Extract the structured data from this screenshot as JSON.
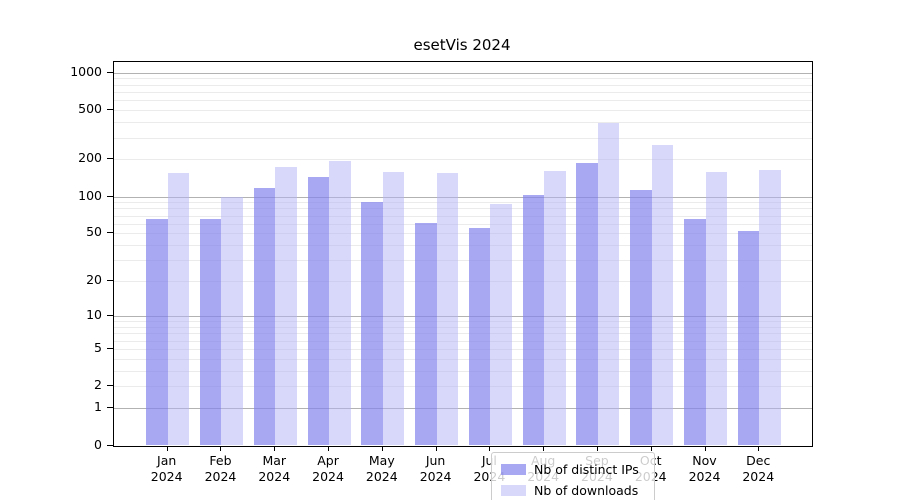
{
  "chart_data": {
    "type": "bar",
    "title": "esetVis 2024",
    "categories": [
      "Jan",
      "Feb",
      "Mar",
      "Apr",
      "May",
      "Jun",
      "Jul",
      "Aug",
      "Sep",
      "Oct",
      "Nov",
      "Dec"
    ],
    "category_year": "2024",
    "series": [
      {
        "name": "Nb of distinct IPs",
        "color": "rgba(131,131,236,0.7)",
        "values": [
          65,
          66,
          117,
          145,
          91,
          61,
          55,
          102,
          188,
          112,
          65,
          52
        ]
      },
      {
        "name": "Nb of downloads",
        "color": "rgba(177,177,245,0.5)",
        "values": [
          154,
          100,
          175,
          195,
          158,
          156,
          87,
          161,
          395,
          260,
          157,
          165
        ]
      }
    ],
    "yscale": "symlog",
    "ylim": [
      0,
      1250
    ],
    "yticks": [
      0,
      1,
      2,
      5,
      10,
      20,
      50,
      100,
      200,
      500,
      1000
    ],
    "grid_major_lines": [
      1,
      10,
      100,
      1000
    ],
    "grid_minor_lines": [
      2,
      3,
      4,
      5,
      6,
      7,
      8,
      9,
      20,
      30,
      40,
      50,
      60,
      70,
      80,
      90,
      200,
      300,
      400,
      500,
      600,
      700,
      800,
      900
    ],
    "legend_position": "lower center",
    "colors": {
      "major_grid": "#b2b2b2",
      "minor_grid": "#ebebeb",
      "axis": "#000000",
      "background": "#ffffff"
    }
  }
}
